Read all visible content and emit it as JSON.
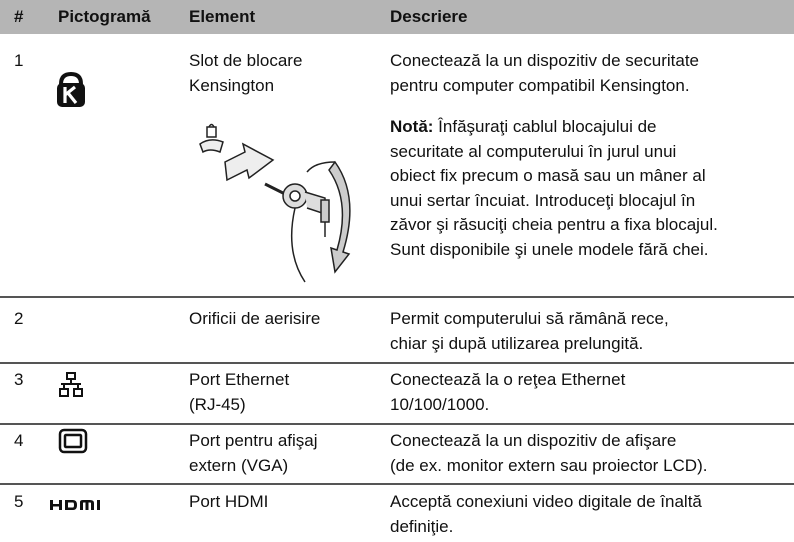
{
  "table": {
    "header": [
      "#",
      "Pictogramă",
      "Element",
      "Descriere"
    ],
    "rows": [
      {
        "number": "1",
        "element": [
          "Slot de blocare",
          "Kensington"
        ],
        "description": [
          "Conectează la un dispozitiv de securitate",
          "pentru computer compatibil Kensington."
        ],
        "note_label": "Notă:",
        "note": [
          " Înfăşuraţi cablul blocajului de",
          "securitate al computerului în jurul unui",
          "obiect fix precum o masă sau un mâner al",
          "unui sertar încuiat. Introduceţi blocajul în",
          "zăvor şi răsuciţi cheia pentru a fixa blocajul.",
          "Sunt disponibile şi unele modele fără chei."
        ]
      },
      {
        "number": "2",
        "element": [
          "Orificii de aerisire"
        ],
        "description": [
          "Permit computerului să rămână rece,",
          "chiar şi după utilizarea prelungită."
        ]
      },
      {
        "number": "3",
        "element": [
          "Port Ethernet",
          "(RJ-45)"
        ],
        "description": [
          "Conectează la o reţea Ethernet",
          "10/100/1000."
        ]
      },
      {
        "number": "4",
        "element": [
          "Port pentru afişaj",
          "extern (VGA)"
        ],
        "description": [
          "Conectează la un dispozitiv de afişare",
          "(de ex. monitor extern sau proiector LCD)."
        ]
      },
      {
        "number": "5",
        "element": [
          "Port HDMI"
        ],
        "description": [
          "Acceptă conexiuni video digitale de înaltă",
          "definiţie."
        ]
      }
    ]
  }
}
